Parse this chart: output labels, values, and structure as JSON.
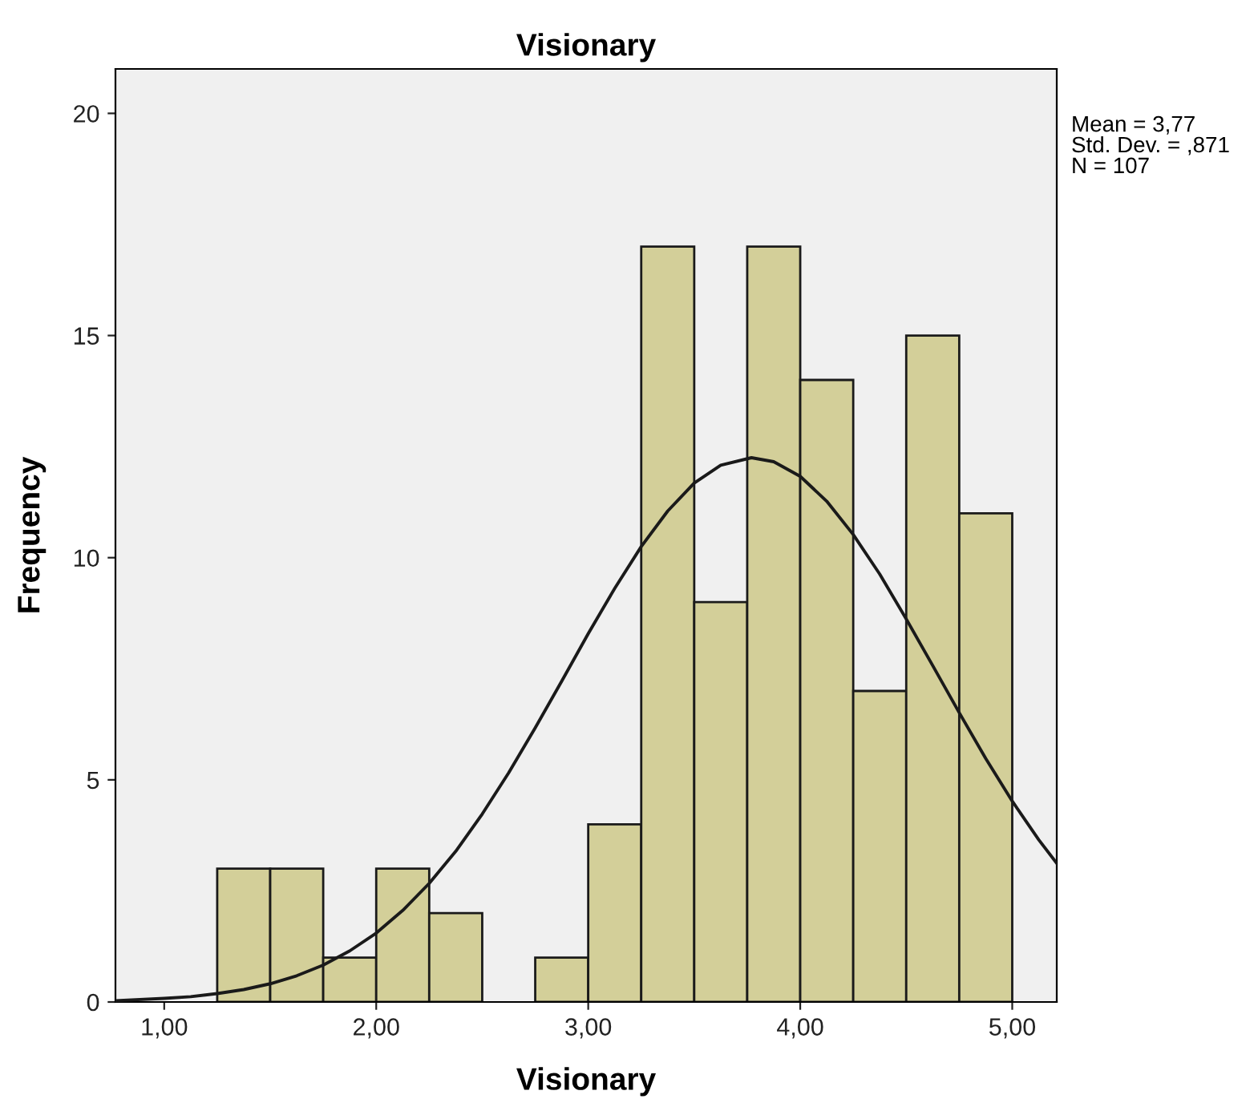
{
  "chart_data": {
    "type": "histogram",
    "title": "Visionary",
    "xlabel": "Visionary",
    "ylabel": "Frequency",
    "series": [
      {
        "color": "#d3cf99",
        "bins": [
          1.25,
          1.5,
          1.75,
          2.0,
          2.25,
          2.5,
          2.75,
          3.0,
          3.25,
          3.5,
          3.75,
          4.0,
          4.25,
          4.5,
          4.75,
          5.0
        ],
        "values": [
          3,
          3,
          1,
          3,
          2,
          0,
          1,
          4,
          17,
          9,
          17,
          14,
          7,
          15,
          11
        ]
      },
      {
        "type": "line",
        "color": "#1a1a1a",
        "x": [
          0.77,
          1.0,
          1.125,
          1.25,
          1.375,
          1.5,
          1.625,
          1.75,
          1.875,
          2.0,
          2.125,
          2.25,
          2.375,
          2.5,
          2.625,
          2.75,
          2.875,
          3.0,
          3.125,
          3.25,
          3.375,
          3.5,
          3.625,
          3.77,
          3.875,
          4.0,
          4.125,
          4.25,
          4.375,
          4.5,
          4.625,
          4.75,
          4.875,
          5.0,
          5.125,
          5.21
        ],
        "values": [
          0.03,
          0.08,
          0.12,
          0.19,
          0.28,
          0.41,
          0.59,
          0.83,
          1.15,
          1.55,
          2.06,
          2.67,
          3.39,
          4.23,
          5.16,
          6.17,
          7.22,
          8.29,
          9.31,
          10.25,
          11.05,
          11.68,
          12.08,
          12.25,
          12.16,
          11.83,
          11.27,
          10.52,
          9.63,
          8.62,
          7.57,
          6.51,
          5.48,
          4.52,
          3.65,
          3.12
        ]
      }
    ],
    "xlim": [
      0.77,
      5.21
    ],
    "ylim": [
      0,
      21
    ],
    "xticks": [
      {
        "value": 1,
        "label": "1,00"
      },
      {
        "value": 2,
        "label": "2,00"
      },
      {
        "value": 3,
        "label": "3,00"
      },
      {
        "value": 4,
        "label": "4,00"
      },
      {
        "value": 5,
        "label": "5,00"
      }
    ],
    "yticks": [
      0,
      5,
      10,
      15,
      20
    ],
    "grid": false,
    "annotations": [
      "Mean = 3,77\nStd. Dev. = ,871\nN = 107"
    ]
  }
}
